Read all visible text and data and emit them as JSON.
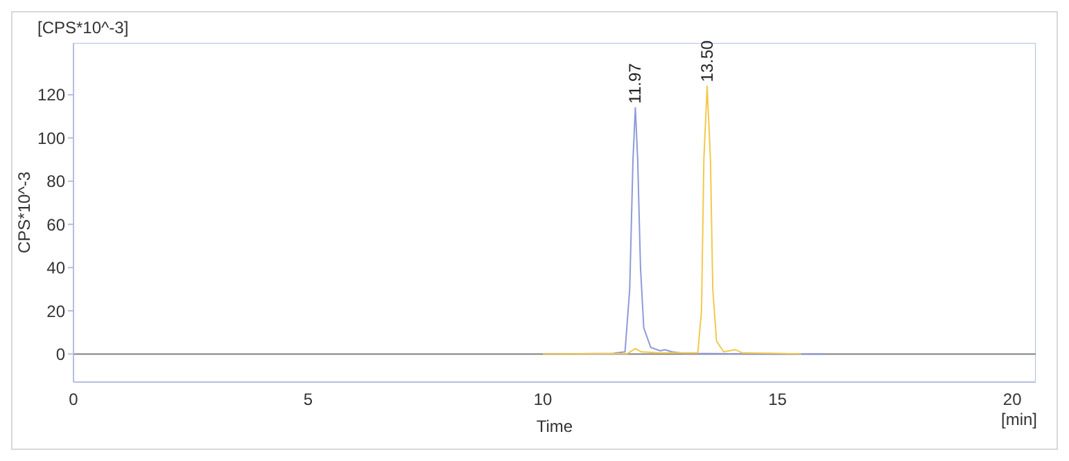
{
  "chart_data": {
    "type": "line",
    "xlabel": "Time",
    "ylabel": "CPS*10^-3",
    "xlim": [
      0,
      20.5
    ],
    "ylim": [
      -13,
      144
    ],
    "xticks": [
      0,
      5,
      10,
      15,
      20
    ],
    "yticks": [
      0,
      20,
      40,
      60,
      80,
      100,
      120
    ],
    "marker": "none",
    "line_style": "solid",
    "series": [
      {
        "color": "#8f9ad8",
        "x": [
          10,
          11.5,
          11.75,
          11.85,
          11.92,
          11.97,
          12.02,
          12.08,
          12.15,
          12.3,
          12.5,
          12.6,
          12.75,
          13,
          13.5,
          15,
          16
        ],
        "values": [
          0,
          0.3,
          1,
          30,
          90,
          114,
          90,
          40,
          12,
          3,
          1.5,
          2,
          1,
          0.3,
          0.2,
          0,
          0
        ]
      },
      {
        "color": "#f2c94c",
        "x": [
          10,
          11.8,
          11.97,
          12.1,
          12.5,
          13.3,
          13.38,
          13.43,
          13.5,
          13.57,
          13.62,
          13.7,
          13.85,
          14.1,
          14.25,
          15,
          15.5
        ],
        "values": [
          0,
          0.2,
          2.5,
          1,
          0.5,
          0.5,
          20,
          90,
          124,
          90,
          30,
          6,
          1,
          2,
          0.5,
          0.3,
          0
        ]
      }
    ],
    "ref_lines": [
      {
        "axis": "y",
        "value": 0,
        "color": "#808080"
      }
    ],
    "annotations": [
      "[CPS*10^-3]",
      "[min]",
      {
        "text": "11.97",
        "x": 11.97,
        "y": 114
      },
      {
        "text": "13.50",
        "x": 13.5,
        "y": 124
      }
    ]
  }
}
